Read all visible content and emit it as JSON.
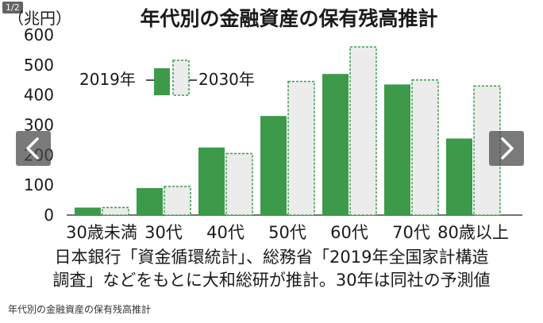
{
  "viewer": {
    "page_counter": "1/2"
  },
  "caption": "年代別の金融資産の保有残高推計",
  "colors": {
    "series_2019": "#3c9a4a",
    "series_2030": "#ececec",
    "series_2030_border": "#3c9a4a",
    "text": "#1a1a1a"
  },
  "icons": {
    "prev": "chevron-left-icon",
    "next": "chevron-right-icon"
  },
  "chart_data": {
    "type": "bar",
    "title": "年代別の金融資産の保有残高推計",
    "unit_label": "（兆円）",
    "categories": [
      "30歳未満",
      "30代",
      "40代",
      "50代",
      "60代",
      "70代",
      "80歳以上"
    ],
    "series": [
      {
        "name": "2019年",
        "values": [
          25,
          90,
          225,
          330,
          470,
          435,
          255
        ]
      },
      {
        "name": "2030年",
        "values": [
          25,
          95,
          205,
          445,
          560,
          450,
          430
        ]
      }
    ],
    "yticks": [
      0,
      100,
      200,
      300,
      400,
      500,
      600
    ],
    "ylim": [
      0,
      600
    ],
    "legend": {
      "position": "top-left",
      "labels": [
        "2019年",
        "2030年"
      ]
    },
    "grid": false,
    "source_lines": [
      "日本銀行「資金循環統計」、総務省「2019年全国家計構造",
      "調査」などをもとに大和総研が推計。30年は同社の予測値"
    ]
  }
}
